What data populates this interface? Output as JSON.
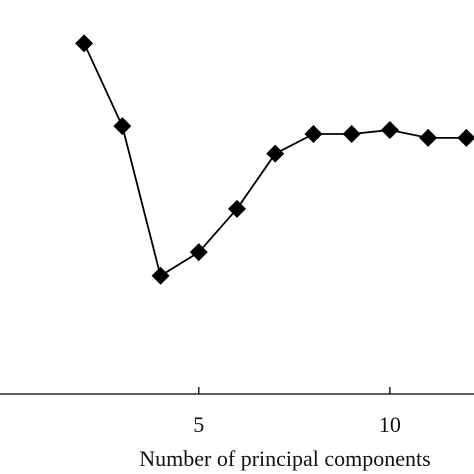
{
  "chart_data": {
    "type": "line",
    "title": "",
    "xlabel": "Number of principal components",
    "ylabel": "",
    "x_ticks": [
      5,
      10
    ],
    "x_tick_labels": [
      "5",
      "10"
    ],
    "xlim": [
      -0.2,
      12.2
    ],
    "ylim": [
      0,
      1
    ],
    "marker": "diamond",
    "grid": false,
    "legend": "none",
    "colors": {
      "line": "#000000",
      "marker": "#000000",
      "axis": "#000000",
      "background": "#ffffff"
    },
    "series": [
      {
        "x": [
          2,
          3,
          4,
          5,
          6,
          7,
          8,
          9,
          10,
          11,
          12
        ],
        "y": [
          0.89,
          0.68,
          0.3,
          0.36,
          0.47,
          0.61,
          0.66,
          0.66,
          0.67,
          0.65,
          0.65
        ]
      }
    ]
  }
}
